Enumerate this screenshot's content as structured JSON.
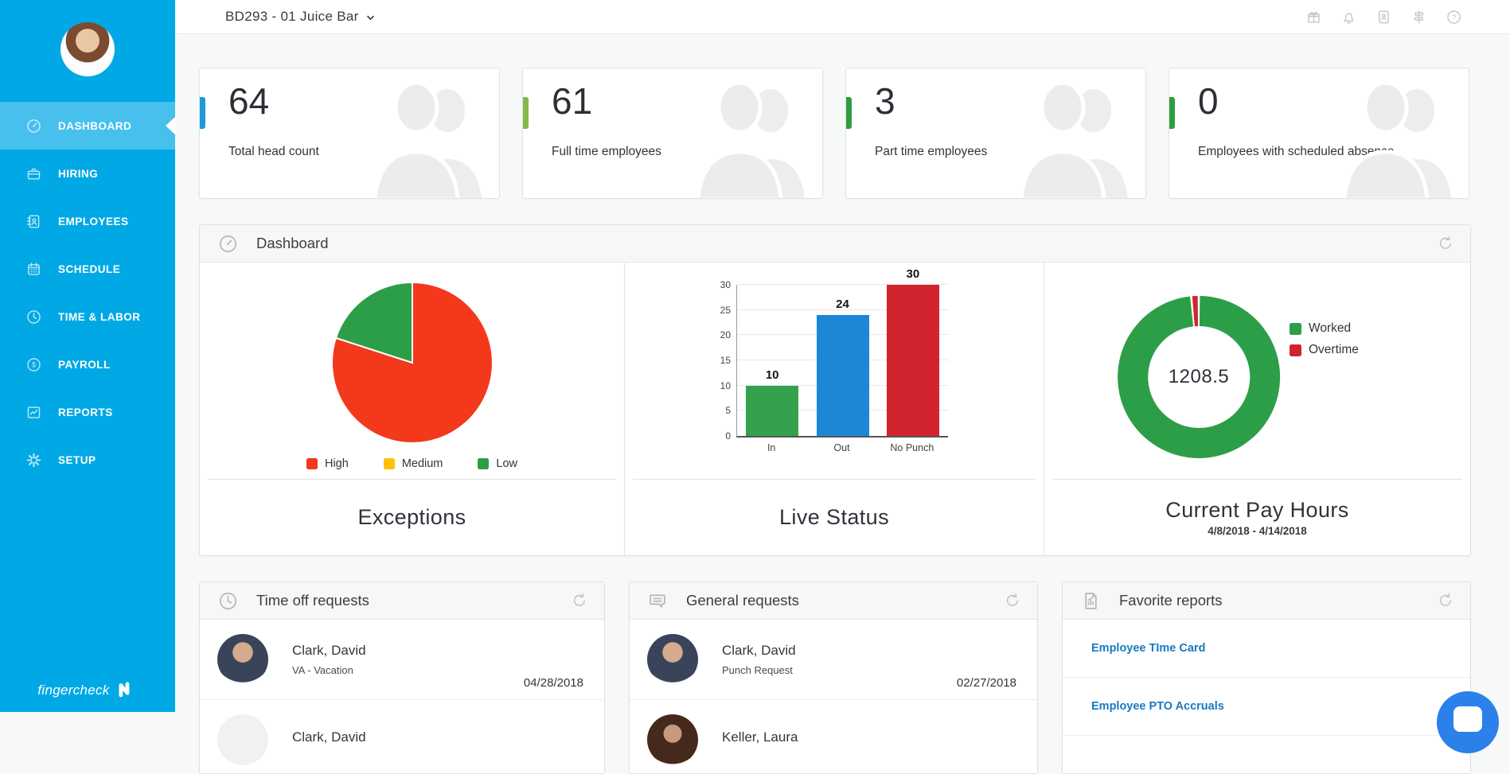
{
  "brand": {
    "logo_text": "fingercheck",
    "sidebar_color": "#00a9e5",
    "sidebar_active_color": "#47c0ee"
  },
  "topbar": {
    "title": "BD293 - 01 Juice Bar",
    "chevron_icon": "chevron-down-icon",
    "icons": [
      "gift-icon",
      "bell-icon",
      "contacts-icon",
      "signpost-icon",
      "help-icon"
    ]
  },
  "ui": {
    "refresh_icon": "refresh-icon"
  },
  "sidebar": {
    "items": [
      {
        "label": "DASHBOARD",
        "icon": "gauge-icon",
        "active": true
      },
      {
        "label": "HIRING",
        "icon": "briefcase-icon",
        "active": false
      },
      {
        "label": "EMPLOYEES",
        "icon": "address-book-icon",
        "active": false
      },
      {
        "label": "SCHEDULE",
        "icon": "calendar-icon",
        "active": false
      },
      {
        "label": "TIME & LABOR",
        "icon": "clock-icon",
        "active": false
      },
      {
        "label": "PAYROLL",
        "icon": "dollar-icon",
        "active": false
      },
      {
        "label": "REPORTS",
        "icon": "chart-icon",
        "active": false
      },
      {
        "label": "SETUP",
        "icon": "gear-icon",
        "active": false
      }
    ]
  },
  "stat_cards": [
    {
      "value": "64",
      "label": "Total head count",
      "accent": "#1d9bd8"
    },
    {
      "value": "61",
      "label": "Full time employees",
      "accent": "#85b84d"
    },
    {
      "value": "3",
      "label": "Part time employees",
      "accent": "#2f9e41"
    },
    {
      "value": "0",
      "label": "Employees with scheduled absence",
      "accent": "#2f9e41"
    }
  ],
  "dashboard_panel": {
    "title": "Dashboard"
  },
  "chart_data": [
    {
      "type": "pie",
      "title": "Exceptions",
      "legend": [
        "High",
        "Medium",
        "Low"
      ],
      "legend_colors": [
        "#f4381c",
        "#ffc20a",
        "#2d9e48"
      ],
      "series": [
        {
          "name": "High",
          "fraction": 0.8
        },
        {
          "name": "Medium",
          "fraction": 0.0
        },
        {
          "name": "Low",
          "fraction": 0.2
        }
      ],
      "note": "fractions estimated from pixels; no numeric labels shown"
    },
    {
      "type": "bar",
      "title": "Live Status",
      "categories": [
        "In",
        "Out",
        "No Punch"
      ],
      "values": [
        10,
        24,
        30
      ],
      "colors": [
        "#36a14c",
        "#1b87d6",
        "#d2242e"
      ],
      "ylim": [
        0,
        30
      ],
      "yticks": [
        0,
        5,
        10,
        15,
        20,
        25,
        30
      ],
      "grid": true
    },
    {
      "type": "donut",
      "title": "Current Pay Hours",
      "subtitle": "4/8/2018 - 4/14/2018",
      "center_label": "1208.5",
      "legend": [
        "Worked",
        "Overtime"
      ],
      "legend_colors": [
        "#2d9e48",
        "#d2242e"
      ],
      "series": [
        {
          "name": "Worked",
          "fraction": 0.985
        },
        {
          "name": "Overtime",
          "fraction": 0.015
        }
      ]
    }
  ],
  "panels": {
    "time_off": {
      "title": "Time off requests",
      "icon": "clock-icon",
      "rows": [
        {
          "name": "Clark, David",
          "detail": "VA - Vacation",
          "date": "04/28/2018",
          "avatar": "clark"
        },
        {
          "name": "Clark, David",
          "detail": "",
          "date": "",
          "avatar": "clark-light"
        }
      ]
    },
    "general": {
      "title": "General requests",
      "icon": "chat-icon",
      "rows": [
        {
          "name": "Clark, David",
          "detail": "Punch Request",
          "date": "02/27/2018",
          "avatar": "clark"
        },
        {
          "name": "Keller, Laura",
          "detail": "",
          "date": "",
          "avatar": "keller"
        }
      ]
    },
    "favorites": {
      "title": "Favorite reports",
      "icon": "report-icon",
      "links": [
        "Employee TIme Card",
        "Employee PTO Accruals"
      ]
    }
  }
}
